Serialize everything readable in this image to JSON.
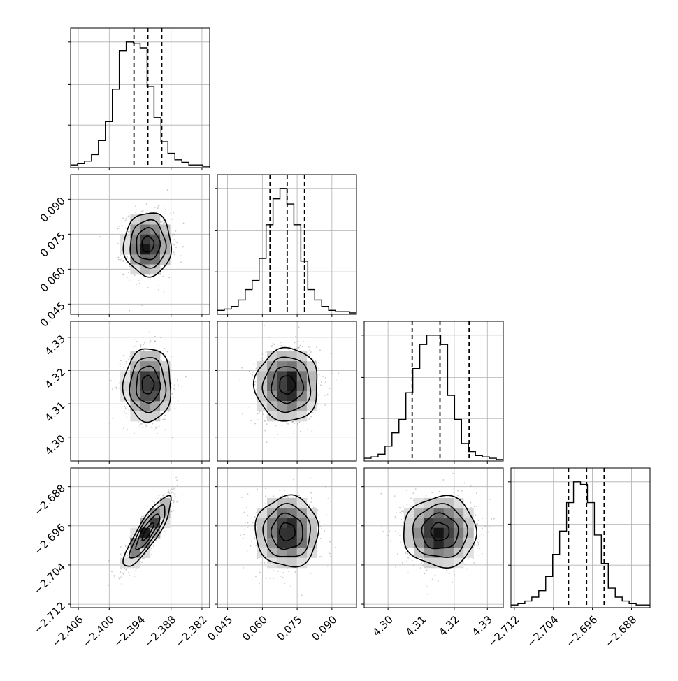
{
  "chart_data": {
    "type": "scatter",
    "params": [
      {
        "range": [
          -2.4075,
          -2.3805
        ],
        "ticks": [
          -2.406,
          -2.4,
          -2.394,
          -2.388,
          -2.382
        ],
        "tick_labels": [
          "−2.406",
          "−2.400",
          "−2.394",
          "−2.388",
          "−2.382"
        ],
        "quantiles": [
          -2.3952,
          -2.3925,
          -2.3898
        ],
        "hist_edges_start": -2.4075,
        "hist_bin_width": 0.00135,
        "hist_counts": [
          1,
          2,
          4,
          9,
          20,
          35,
          60,
          90,
          97,
          96,
          92,
          62,
          38,
          19,
          10,
          5,
          3,
          1,
          1,
          0
        ]
      },
      {
        "range": [
          0.0406,
          0.1006
        ],
        "ticks": [
          0.045,
          0.06,
          0.075,
          0.09
        ],
        "tick_labels": [
          "0.045",
          "0.060",
          "0.075",
          "0.090"
        ],
        "quantiles": [
          0.0633,
          0.0707,
          0.0782
        ],
        "hist_edges_start": 0.0406,
        "hist_bin_width": 0.003,
        "hist_counts": [
          2,
          3,
          5,
          10,
          18,
          25,
          42,
          68,
          88,
          96,
          84,
          68,
          40,
          18,
          10,
          5,
          2,
          1,
          1,
          0
        ]
      },
      {
        "range": [
          4.2928,
          4.3348
        ],
        "ticks": [
          4.3,
          4.31,
          4.32,
          4.33
        ],
        "tick_labels": [
          "4.30",
          "4.31",
          "4.32",
          "4.33"
        ],
        "quantiles": [
          4.3073,
          4.3157,
          4.3245
        ],
        "hist_edges_start": 4.2928,
        "hist_bin_width": 0.0021,
        "hist_counts": [
          1,
          2,
          4,
          10,
          20,
          30,
          50,
          68,
          86,
          93,
          93,
          86,
          48,
          30,
          12,
          6,
          3,
          2,
          1,
          0
        ]
      },
      {
        "range": [
          -2.7127,
          -2.6842
        ],
        "ticks": [
          -2.712,
          -2.704,
          -2.696,
          -2.688
        ],
        "tick_labels": [
          "−2.712",
          "−2.704",
          "−2.696",
          "−2.688"
        ],
        "quantiles": [
          -2.7009,
          -2.6972,
          -2.6936
        ],
        "hist_edges_start": -2.7127,
        "hist_bin_width": 0.001425,
        "hist_counts": [
          1,
          2,
          4,
          7,
          12,
          23,
          40,
          58,
          80,
          96,
          94,
          80,
          55,
          33,
          14,
          7,
          4,
          2,
          1,
          1
        ]
      }
    ],
    "pairs": [
      {
        "x": 0,
        "y": 1,
        "center": [
          -2.3925,
          0.0707
        ],
        "sd": [
          0.0023,
          0.0068
        ],
        "rho": 0.0,
        "contour_scale": [
          1.0,
          1.0,
          1.0
        ]
      },
      {
        "x": 0,
        "y": 2,
        "center": [
          -2.3925,
          4.3157
        ],
        "sd": [
          0.0023,
          0.0055
        ],
        "rho": 0.0,
        "contour_scale": [
          1.0,
          1.0,
          1.0
        ]
      },
      {
        "x": 1,
        "y": 2,
        "center": [
          0.0707,
          4.3157
        ],
        "sd": [
          0.0068,
          0.0055
        ],
        "rho": 0.0,
        "contour_scale": [
          1.0,
          1.0,
          1.0
        ]
      },
      {
        "x": 0,
        "y": 3,
        "center": [
          -2.3925,
          -2.6972
        ],
        "sd": [
          0.0023,
          0.0036
        ],
        "rho": 0.86,
        "contour_scale": [
          1.0,
          1.0,
          1.0
        ]
      },
      {
        "x": 1,
        "y": 3,
        "center": [
          0.0707,
          -2.6972
        ],
        "sd": [
          0.0068,
          0.0036
        ],
        "rho": 0.0,
        "contour_scale": [
          1.0,
          1.0,
          1.0
        ]
      },
      {
        "x": 2,
        "y": 3,
        "center": [
          4.3157,
          -2.6972
        ],
        "sd": [
          0.0055,
          0.0036
        ],
        "rho": 0.0,
        "contour_scale": [
          1.0,
          1.0,
          1.0
        ]
      }
    ],
    "contour_sigma_levels": [
      0.5,
      1.0,
      1.5,
      2.0
    ],
    "grid": true,
    "colors": {
      "line": "#000000",
      "grid": "#b0b0b0",
      "points": "#9a9a9a"
    }
  }
}
